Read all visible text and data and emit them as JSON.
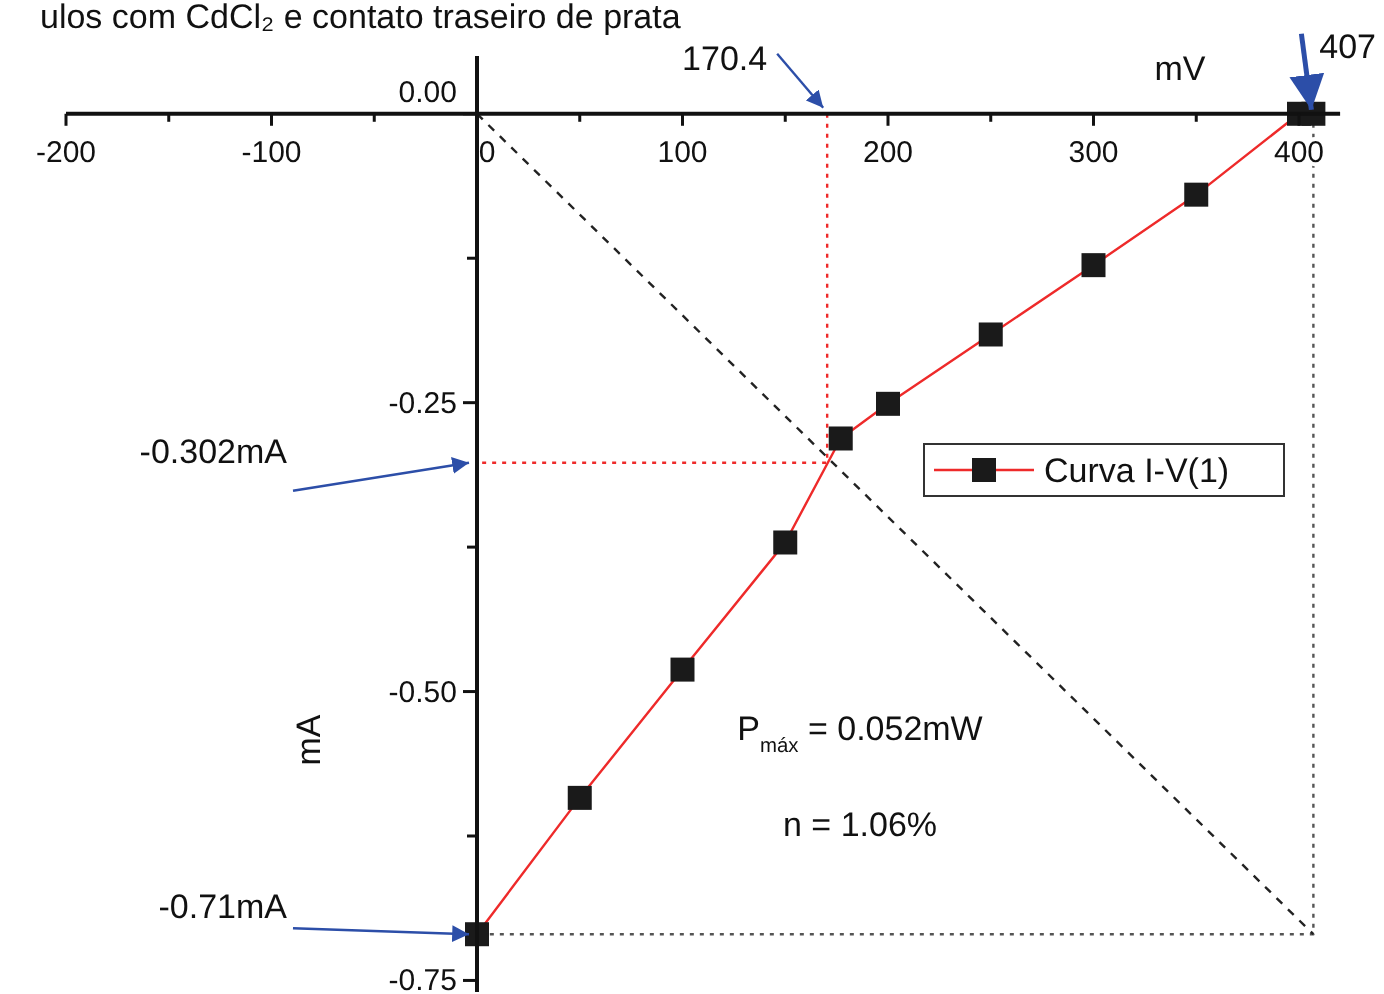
{
  "chart_data": {
    "type": "line",
    "title": "ulos com CdCl₂ e contato traseiro de prata",
    "xlabel": "mV",
    "ylabel": "mA",
    "xlim": [
      -200,
      420
    ],
    "ylim": [
      -0.76,
      0.05
    ],
    "xticks": [
      -200,
      {
        "value": -150,
        "label": null
      },
      -100,
      {
        "value": -50,
        "label": null
      },
      0,
      {
        "value": 50,
        "label": null
      },
      100,
      {
        "value": 150,
        "label": null
      },
      200,
      {
        "value": 250,
        "label": null
      },
      300,
      {
        "value": 350,
        "label": null
      },
      400
    ],
    "yticks": [
      {
        "value": 0,
        "label": "0.00"
      },
      {
        "value": -0.125,
        "label": null
      },
      -0.25,
      {
        "value": -0.375,
        "label": null
      },
      {
        "value": -0.5,
        "label": "-0.50"
      },
      {
        "value": -0.625,
        "label": null
      },
      -0.75
    ],
    "grid": false,
    "legend": "right",
    "series": [
      {
        "name": "Curva I-V(1)",
        "color": "#ee2a2a",
        "marker": "square",
        "line_style": "solid",
        "x": [
          0,
          50,
          100,
          150,
          177,
          200,
          250,
          300,
          350,
          400,
          407
        ],
        "values": [
          -0.71,
          -0.592,
          -0.481,
          -0.371,
          -0.281,
          -0.251,
          -0.191,
          -0.131,
          -0.07,
          0,
          0
        ]
      },
      {
        "color": "#222222",
        "marker": "none",
        "line_style": "dashed",
        "x": [
          0,
          407
        ],
        "values": [
          0,
          -0.71
        ]
      },
      {
        "color": "#ee2a2a",
        "marker": "none",
        "line_style": "dotted",
        "x": [
          170.4,
          170.4,
          0
        ],
        "values": [
          0,
          -0.302,
          -0.302
        ]
      },
      {
        "color": "#555555",
        "marker": "none",
        "line_style": "dotted",
        "x": [
          407,
          407,
          0
        ],
        "values": [
          0,
          -0.71,
          -0.71
        ]
      }
    ],
    "annotations": [
      {
        "text": "170.4",
        "x": 170.4,
        "y": 0
      },
      {
        "text": "407",
        "x": 407,
        "y": 0
      },
      {
        "text": "-0.302mA",
        "x": 0,
        "y": -0.302
      },
      {
        "text": "-0.71mA",
        "x": 0,
        "y": -0.71
      },
      "P$_{máx}$ = 0.052mW",
      "n = 1.06%"
    ]
  }
}
